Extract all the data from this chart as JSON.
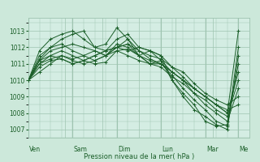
{
  "bg_color": "#cce8da",
  "plot_bg_color": "#d4ede3",
  "line_color": "#1a5e28",
  "grid_color": "#9ec4b0",
  "xlabel_text": "Pression niveau de la mer( hPa )",
  "day_labels": [
    "Ven",
    "Sam",
    "Dim",
    "Lun",
    "Mar",
    "Me"
  ],
  "day_positions": [
    0,
    24,
    48,
    72,
    96,
    114
  ],
  "ylim": [
    1006.5,
    1013.8
  ],
  "yticks": [
    1007,
    1008,
    1009,
    1010,
    1011,
    1012,
    1013
  ],
  "total_hours": 120,
  "lines": [
    [
      0,
      1010,
      6,
      1011,
      12,
      1011.5,
      18,
      1011.8,
      24,
      1011.5,
      30,
      1011.2,
      36,
      1011.0,
      42,
      1011.1,
      48,
      1011.8,
      54,
      1011.9,
      60,
      1011.5,
      66,
      1011.2,
      72,
      1011.0,
      78,
      1010.5,
      84,
      1010.0,
      90,
      1009.5,
      96,
      1009.0,
      102,
      1008.5,
      108,
      1008.0,
      114,
      1013.0
    ],
    [
      0,
      1010,
      6,
      1011.2,
      12,
      1011.8,
      18,
      1012.0,
      24,
      1012.2,
      30,
      1012.0,
      36,
      1011.8,
      42,
      1011.5,
      48,
      1012.0,
      54,
      1012.2,
      60,
      1011.8,
      66,
      1011.3,
      72,
      1011.0,
      78,
      1010.3,
      84,
      1009.5,
      90,
      1008.8,
      96,
      1008.2,
      102,
      1007.5,
      108,
      1007.2,
      114,
      1012.0
    ],
    [
      0,
      1010,
      6,
      1011.5,
      12,
      1012.0,
      18,
      1012.5,
      24,
      1012.8,
      30,
      1013.0,
      36,
      1012.0,
      42,
      1011.8,
      48,
      1012.5,
      54,
      1012.8,
      60,
      1012.0,
      66,
      1011.8,
      72,
      1011.2,
      78,
      1010.0,
      84,
      1009.0,
      90,
      1008.2,
      96,
      1007.8,
      102,
      1007.3,
      108,
      1007.0,
      114,
      1011.5
    ],
    [
      0,
      1010,
      6,
      1011.8,
      12,
      1012.5,
      18,
      1012.8,
      24,
      1013.0,
      30,
      1012.5,
      36,
      1012.0,
      42,
      1012.2,
      48,
      1013.2,
      54,
      1012.5,
      60,
      1011.5,
      66,
      1011.8,
      72,
      1011.5,
      78,
      1010.0,
      84,
      1009.2,
      90,
      1008.5,
      96,
      1007.5,
      102,
      1007.2,
      108,
      1007.3,
      114,
      1011.0
    ],
    [
      0,
      1010,
      6,
      1011.2,
      12,
      1011.5,
      18,
      1011.3,
      24,
      1011.0,
      30,
      1011.2,
      36,
      1011.5,
      42,
      1011.8,
      48,
      1012.0,
      54,
      1012.5,
      60,
      1011.8,
      66,
      1011.5,
      72,
      1011.3,
      78,
      1010.8,
      84,
      1010.2,
      90,
      1009.5,
      96,
      1009.0,
      102,
      1008.5,
      108,
      1008.0,
      114,
      1010.5
    ],
    [
      0,
      1010,
      6,
      1011.0,
      12,
      1011.3,
      18,
      1011.5,
      24,
      1011.2,
      30,
      1011.0,
      36,
      1011.2,
      42,
      1011.5,
      48,
      1012.2,
      54,
      1012.0,
      60,
      1011.5,
      66,
      1011.0,
      72,
      1011.0,
      78,
      1010.5,
      84,
      1010.0,
      90,
      1009.2,
      96,
      1008.8,
      102,
      1008.2,
      108,
      1007.8,
      114,
      1010.0
    ],
    [
      0,
      1010,
      6,
      1010.5,
      12,
      1011.0,
      18,
      1011.5,
      24,
      1011.3,
      30,
      1011.5,
      36,
      1011.8,
      42,
      1011.5,
      48,
      1011.8,
      54,
      1011.5,
      60,
      1011.2,
      66,
      1011.0,
      72,
      1010.8,
      78,
      1010.2,
      84,
      1009.8,
      90,
      1009.2,
      96,
      1008.5,
      102,
      1008.0,
      108,
      1007.5,
      114,
      1009.5
    ],
    [
      0,
      1010,
      6,
      1010.8,
      12,
      1011.2,
      18,
      1011.3,
      24,
      1011.0,
      30,
      1011.2,
      36,
      1011.5,
      42,
      1011.8,
      48,
      1012.0,
      54,
      1011.8,
      60,
      1012.0,
      66,
      1011.8,
      72,
      1011.5,
      78,
      1010.8,
      84,
      1010.5,
      90,
      1009.8,
      96,
      1009.2,
      102,
      1008.8,
      108,
      1008.5,
      114,
      1009.0
    ],
    [
      0,
      1010,
      6,
      1011.3,
      12,
      1012.0,
      18,
      1012.2,
      24,
      1011.8,
      30,
      1011.5,
      36,
      1011.2,
      42,
      1011.5,
      48,
      1012.0,
      54,
      1012.2,
      60,
      1011.5,
      66,
      1011.0,
      72,
      1011.2,
      78,
      1010.5,
      84,
      1010.0,
      90,
      1009.5,
      96,
      1009.0,
      102,
      1008.5,
      108,
      1008.2,
      114,
      1008.5
    ]
  ]
}
